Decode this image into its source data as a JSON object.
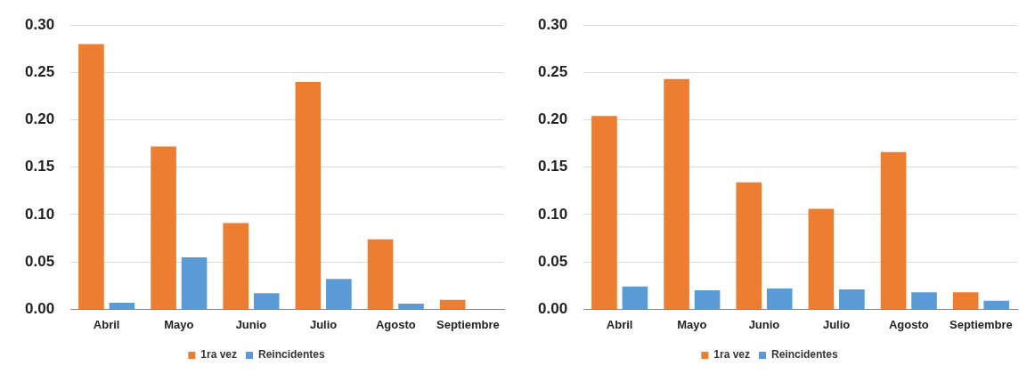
{
  "chart_data": [
    {
      "type": "bar",
      "categories": [
        "Abril",
        "Mayo",
        "Junio",
        "Julio",
        "Agosto",
        "Septiembre"
      ],
      "series": [
        {
          "name": "1ra vez",
          "color": "#ed7d31",
          "values": [
            0.28,
            0.172,
            0.091,
            0.24,
            0.074,
            0.01
          ]
        },
        {
          "name": "Reincidentes",
          "color": "#5b9bd5",
          "values": [
            0.007,
            0.055,
            0.017,
            0.032,
            0.006,
            0
          ]
        }
      ],
      "ylim": [
        0,
        0.3
      ],
      "yticks": [
        {
          "value": 0,
          "label": "0.00"
        },
        {
          "value": 0.05,
          "label": "0.05"
        },
        {
          "value": 0.1,
          "label": "0.10"
        },
        {
          "value": 0.15,
          "label": "0.15"
        },
        {
          "value": 0.2,
          "label": "0.20"
        },
        {
          "value": 0.25,
          "label": "0.25"
        },
        {
          "value": 0.3,
          "label": "0.30"
        }
      ],
      "grid": "y",
      "legend": "bottom"
    },
    {
      "type": "bar",
      "categories": [
        "Abril",
        "Mayo",
        "Junio",
        "Julio",
        "Agosto",
        "Septiembre"
      ],
      "series": [
        {
          "name": "1ra vez",
          "color": "#ed7d31",
          "values": [
            0.204,
            0.243,
            0.134,
            0.106,
            0.166,
            0.018
          ]
        },
        {
          "name": "Reincidentes",
          "color": "#5b9bd5",
          "values": [
            0.024,
            0.02,
            0.022,
            0.021,
            0.018,
            0.009
          ]
        }
      ],
      "ylim": [
        0,
        0.3
      ],
      "yticks": [
        {
          "value": 0,
          "label": "0.00"
        },
        {
          "value": 0.05,
          "label": "0.05"
        },
        {
          "value": 0.1,
          "label": "0.10"
        },
        {
          "value": 0.15,
          "label": "0.15"
        },
        {
          "value": 0.2,
          "label": "0.20"
        },
        {
          "value": 0.25,
          "label": "0.25"
        },
        {
          "value": 0.3,
          "label": "0.30"
        }
      ],
      "grid": "y",
      "legend": "bottom"
    }
  ]
}
